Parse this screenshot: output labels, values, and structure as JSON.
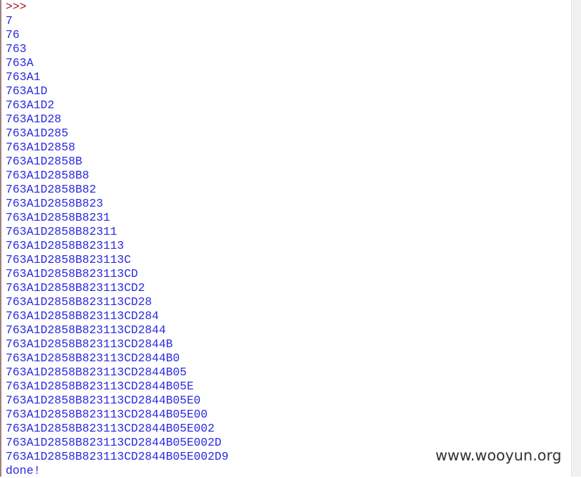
{
  "shell": {
    "prompt": ">>>",
    "lines": [
      "7",
      "76",
      "763",
      "763A",
      "763A1",
      "763A1D",
      "763A1D2",
      "763A1D28",
      "763A1D285",
      "763A1D2858",
      "763A1D2858B",
      "763A1D2858B8",
      "763A1D2858B82",
      "763A1D2858B823",
      "763A1D2858B8231",
      "763A1D2858B82311",
      "763A1D2858B823113",
      "763A1D2858B823113C",
      "763A1D2858B823113CD",
      "763A1D2858B823113CD2",
      "763A1D2858B823113CD28",
      "763A1D2858B823113CD284",
      "763A1D2858B823113CD2844",
      "763A1D2858B823113CD2844B",
      "763A1D2858B823113CD2844B0",
      "763A1D2858B823113CD2844B05",
      "763A1D2858B823113CD2844B05E",
      "763A1D2858B823113CD2844B05E0",
      "763A1D2858B823113CD2844B05E00",
      "763A1D2858B823113CD2844B05E002",
      "763A1D2858B823113CD2844B05E002D",
      "763A1D2858B823113CD2844B05E002D9"
    ],
    "done": "done!"
  },
  "watermark": "www.wooyun.org"
}
